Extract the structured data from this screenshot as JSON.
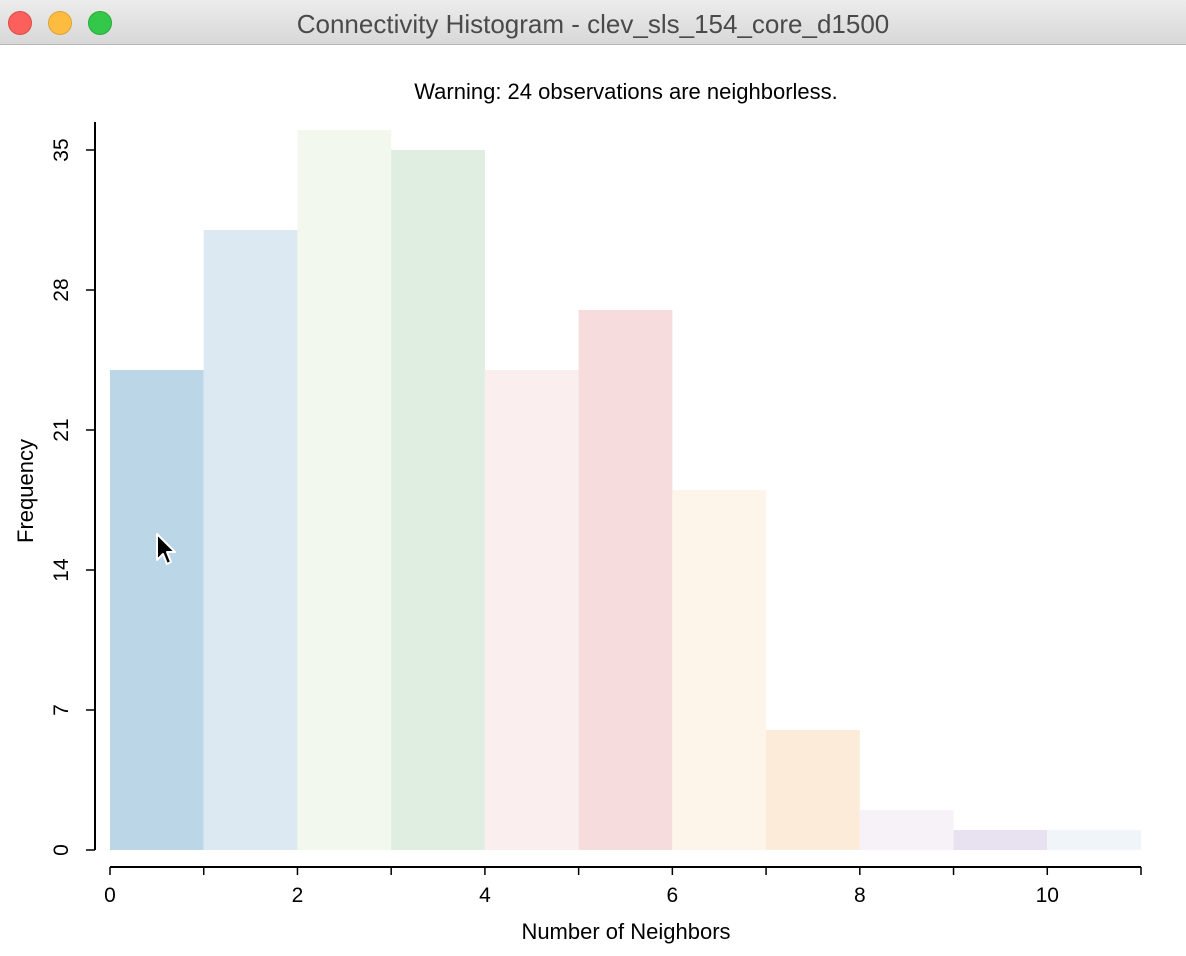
{
  "window": {
    "title": "Connectivity Histogram - clev_sls_154_core_d1500"
  },
  "chart_data": {
    "type": "bar",
    "title": "Warning: 24 observations are neighborless.",
    "xlabel": "Number of Neighbors",
    "ylabel": "Frequency",
    "bins": [
      {
        "x0": 0,
        "x1": 1,
        "value": 24,
        "color": "#bad6e7"
      },
      {
        "x0": 1,
        "x1": 2,
        "value": 31,
        "color": "#dde9f2"
      },
      {
        "x0": 2,
        "x1": 3,
        "value": 36,
        "color": "#f2f8ed"
      },
      {
        "x0": 3,
        "x1": 4,
        "value": 35,
        "color": "#e0ede1"
      },
      {
        "x0": 4,
        "x1": 5,
        "value": 24,
        "color": "#fbeeee"
      },
      {
        "x0": 5,
        "x1": 6,
        "value": 27,
        "color": "#f7dcdd"
      },
      {
        "x0": 6,
        "x1": 7,
        "value": 18,
        "color": "#fdf5ea"
      },
      {
        "x0": 7,
        "x1": 8,
        "value": 6,
        "color": "#fcebd9"
      },
      {
        "x0": 8,
        "x1": 9,
        "value": 2,
        "color": "#f7f2f8"
      },
      {
        "x0": 9,
        "x1": 10,
        "value": 1,
        "color": "#e8e1ef"
      },
      {
        "x0": 10,
        "x1": 11,
        "value": 1,
        "color": "#f0f5f9"
      }
    ],
    "xlim": [
      0,
      11
    ],
    "ylim": [
      0,
      36
    ],
    "xticks": [
      0,
      1,
      2,
      3,
      4,
      5,
      6,
      7,
      8,
      9,
      10,
      11
    ],
    "xtick_labels": [
      "0",
      "",
      "2",
      "",
      "4",
      "",
      "6",
      "",
      "8",
      "",
      "10",
      ""
    ],
    "yticks": [
      0,
      7,
      14,
      21,
      28,
      35
    ],
    "ytick_labels": [
      "0",
      "7",
      "14",
      "21",
      "28",
      "35"
    ],
    "grid": false,
    "legend": "none"
  }
}
